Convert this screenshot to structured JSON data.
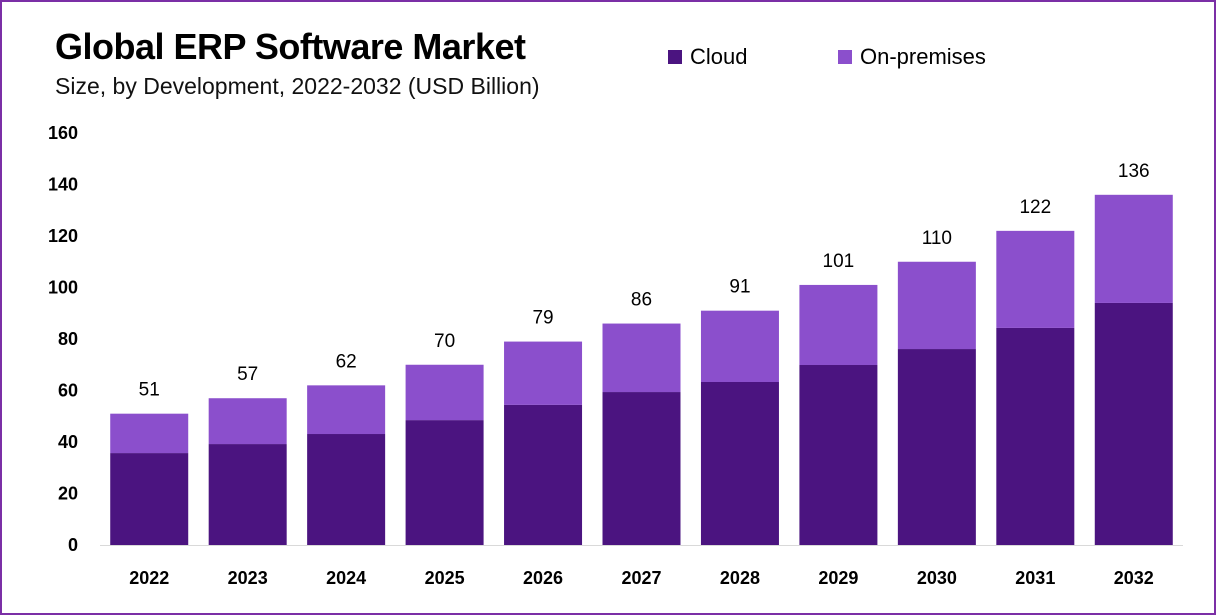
{
  "chart_data": {
    "type": "bar",
    "stacked": true,
    "title": "Global ERP Software Market",
    "subtitle": "Size, by Development, 2022-2032 (USD Billion)",
    "categories": [
      "2022",
      "2023",
      "2024",
      "2025",
      "2026",
      "2027",
      "2028",
      "2029",
      "2030",
      "2031",
      "2032"
    ],
    "series": [
      {
        "name": "Cloud",
        "color": "#4B1480",
        "values": [
          35.7,
          39.2,
          43.1,
          48.5,
          54.4,
          59.4,
          63.3,
          69.9,
          76.1,
          84.3,
          94.0
        ]
      },
      {
        "name": "On-premises",
        "color": "#8B4FCC",
        "values": [
          15.3,
          17.8,
          18.9,
          21.5,
          24.6,
          26.6,
          27.7,
          31.1,
          33.9,
          37.7,
          42.0
        ]
      }
    ],
    "totals": [
      "51",
      "57",
      "62",
      "70",
      "79",
      "86",
      "91",
      "101",
      "110",
      "122",
      "136"
    ],
    "yticks": [
      "0",
      "20",
      "40",
      "60",
      "80",
      "100",
      "120",
      "140",
      "160"
    ],
    "ylim": [
      0,
      160
    ],
    "grid": false,
    "legend_position": "top-right",
    "xlabel": "",
    "ylabel": ""
  }
}
